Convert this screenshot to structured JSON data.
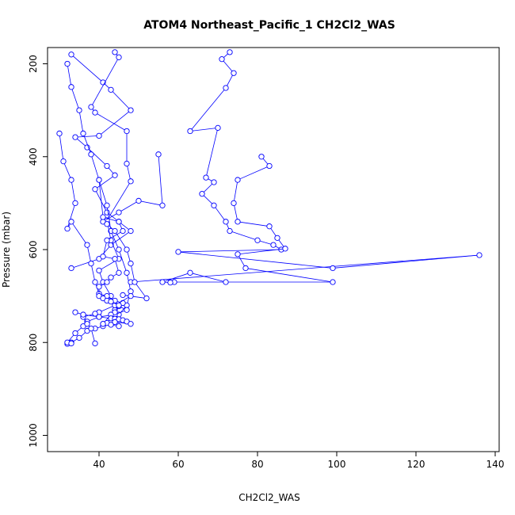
{
  "chart_data": {
    "type": "scatter",
    "title": "ATOM4 Northeast_Pacific_1 CH2Cl2_WAS",
    "xlabel": "CH2Cl2_WAS",
    "ylabel": "Pressure (mbar)",
    "xlim": [
      27,
      141
    ],
    "ylim": [
      1035,
      165
    ],
    "y_reversed": true,
    "x_ticks": [
      40,
      60,
      80,
      100,
      120,
      140
    ],
    "y_ticks": [
      200,
      400,
      600,
      800,
      1000
    ],
    "grid": false,
    "legend": "none",
    "color": "#0000ff",
    "marker": "open-circle",
    "series": [
      {
        "x": [
          33,
          41,
          43,
          48,
          40,
          34,
          37,
          42,
          44,
          39,
          42,
          45,
          48,
          43,
          40,
          33
        ],
        "y": [
          180,
          240,
          256,
          300,
          355,
          358,
          380,
          420,
          440,
          470,
          520,
          540,
          560,
          590,
          620,
          640
        ]
      },
      {
        "x": [
          32,
          33,
          35,
          36,
          38,
          40,
          42,
          43,
          45,
          47,
          48,
          47,
          45,
          43,
          41,
          39,
          37,
          35,
          33,
          32
        ],
        "y": [
          200,
          250,
          300,
          350,
          395,
          450,
          505,
          560,
          600,
          650,
          690,
          720,
          740,
          755,
          765,
          770,
          775,
          790,
          800,
          803
        ]
      },
      {
        "x": [
          44,
          45,
          38,
          39,
          47,
          47,
          48,
          42,
          43,
          45,
          40,
          41,
          43,
          44
        ],
        "y": [
          175,
          186,
          293,
          305,
          345,
          415,
          453,
          537,
          580,
          620,
          645,
          670,
          700,
          730
        ]
      },
      {
        "x": [
          73,
          71,
          74,
          72,
          63,
          70,
          67,
          69,
          66,
          69,
          72,
          73,
          80,
          84,
          86,
          60,
          99,
          136,
          48
        ],
        "y": [
          175,
          190,
          220,
          252,
          345,
          338,
          445,
          455,
          480,
          505,
          540,
          560,
          580,
          590,
          600,
          605,
          640,
          612,
          670
        ]
      },
      {
        "x": [
          81,
          83,
          75,
          74,
          75,
          83,
          85,
          87,
          75,
          77,
          99,
          59,
          58,
          56,
          63,
          72
        ],
        "y": [
          400,
          420,
          450,
          500,
          540,
          550,
          575,
          598,
          610,
          640,
          670,
          670,
          671,
          670,
          650,
          670
        ]
      },
      {
        "x": [
          30,
          31,
          33,
          34,
          32,
          33,
          37,
          38,
          39,
          40,
          42,
          44,
          46,
          45,
          47,
          44,
          40,
          37,
          36,
          34,
          32,
          33
        ],
        "y": [
          350,
          410,
          450,
          500,
          555,
          540,
          590,
          630,
          670,
          695,
          700,
          710,
          715,
          722,
          730,
          740,
          745,
          755,
          765,
          780,
          800,
          802
        ]
      },
      {
        "x": [
          55,
          56,
          50,
          45,
          41,
          42,
          44,
          47,
          48,
          49,
          52,
          46,
          48,
          44,
          40,
          39,
          36,
          37,
          38,
          39
        ],
        "y": [
          395,
          505,
          495,
          520,
          540,
          545,
          560,
          600,
          630,
          670,
          705,
          698,
          700,
          720,
          735,
          738,
          745,
          760,
          770,
          802
        ]
      },
      {
        "x": [
          40,
          41,
          45,
          46,
          42,
          41,
          44,
          45,
          43,
          42,
          40,
          40,
          41,
          42,
          43,
          45,
          44,
          43,
          41
        ],
        "y": [
          450,
          530,
          540,
          560,
          580,
          615,
          620,
          650,
          660,
          670,
          680,
          700,
          705,
          710,
          712,
          720,
          735,
          740,
          760
        ]
      },
      {
        "x": [
          34,
          36,
          40,
          43,
          44,
          45,
          46,
          47,
          48,
          44,
          42,
          41,
          43,
          45
        ],
        "y": [
          735,
          740,
          745,
          748,
          749,
          750,
          752,
          755,
          760,
          756,
          758,
          760,
          762,
          765
        ]
      }
    ]
  }
}
